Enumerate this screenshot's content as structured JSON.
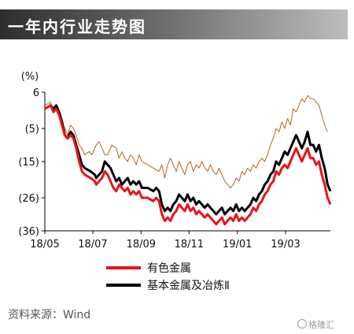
{
  "title": "一年内行业走势图",
  "source": "资料来源：Wind",
  "watermark": "格隆汇",
  "chart_data": {
    "type": "line",
    "ylabel": "(%)",
    "ylim": [
      -36,
      6
    ],
    "yticks": [
      6,
      -5,
      -15,
      -26,
      -36
    ],
    "ytick_labels": [
      "6",
      "(5)",
      "(15)",
      "(26)",
      "(36)"
    ],
    "xlim": [
      0,
      1
    ],
    "xtick_positions": [
      0,
      0.168,
      0.337,
      0.505,
      0.674,
      0.843
    ],
    "xtick_labels": [
      "18/05",
      "18/07",
      "18/09",
      "18/11",
      "19/01",
      "19/03"
    ],
    "grid": false,
    "legend_position": "bottom",
    "series": [
      {
        "name": "",
        "color": "#b5651d",
        "points": [
          [
            0,
            2
          ],
          [
            0.02,
            3
          ],
          [
            0.03,
            0
          ],
          [
            0.04,
            2
          ],
          [
            0.05,
            -1
          ],
          [
            0.06,
            -3
          ],
          [
            0.07,
            -5
          ],
          [
            0.08,
            -7
          ],
          [
            0.09,
            -4
          ],
          [
            0.1,
            -5
          ],
          [
            0.11,
            -7
          ],
          [
            0.12,
            -10
          ],
          [
            0.13,
            -11
          ],
          [
            0.14,
            -13
          ],
          [
            0.155,
            -12
          ],
          [
            0.165,
            -13
          ],
          [
            0.18,
            -10
          ],
          [
            0.19,
            -9
          ],
          [
            0.2,
            -11
          ],
          [
            0.21,
            -13
          ],
          [
            0.22,
            -13
          ],
          [
            0.235,
            -10
          ],
          [
            0.25,
            -11
          ],
          [
            0.26,
            -14
          ],
          [
            0.27,
            -12
          ],
          [
            0.28,
            -14
          ],
          [
            0.29,
            -15
          ],
          [
            0.3,
            -13
          ],
          [
            0.31,
            -14
          ],
          [
            0.32,
            -16
          ],
          [
            0.33,
            -13
          ],
          [
            0.34,
            -15
          ],
          [
            0.36,
            -16
          ],
          [
            0.38,
            -17
          ],
          [
            0.4,
            -18
          ],
          [
            0.41,
            -16
          ],
          [
            0.42,
            -20
          ],
          [
            0.43,
            -16
          ],
          [
            0.44,
            -14
          ],
          [
            0.45,
            -16
          ],
          [
            0.46,
            -18
          ],
          [
            0.47,
            -15
          ],
          [
            0.48,
            -17
          ],
          [
            0.49,
            -19
          ],
          [
            0.5,
            -16
          ],
          [
            0.51,
            -15
          ],
          [
            0.52,
            -18
          ],
          [
            0.53,
            -16
          ],
          [
            0.54,
            -17
          ],
          [
            0.55,
            -15
          ],
          [
            0.56,
            -17
          ],
          [
            0.57,
            -18
          ],
          [
            0.58,
            -16
          ],
          [
            0.59,
            -18
          ],
          [
            0.6,
            -19
          ],
          [
            0.61,
            -17
          ],
          [
            0.62,
            -19
          ],
          [
            0.63,
            -21
          ],
          [
            0.64,
            -22
          ],
          [
            0.65,
            -23
          ],
          [
            0.66,
            -22
          ],
          [
            0.67,
            -20
          ],
          [
            0.68,
            -21
          ],
          [
            0.69,
            -18
          ],
          [
            0.7,
            -19
          ],
          [
            0.71,
            -17
          ],
          [
            0.72,
            -18
          ],
          [
            0.73,
            -16
          ],
          [
            0.74,
            -17
          ],
          [
            0.75,
            -15
          ],
          [
            0.76,
            -14
          ],
          [
            0.77,
            -15
          ],
          [
            0.78,
            -13
          ],
          [
            0.79,
            -10
          ],
          [
            0.8,
            -8
          ],
          [
            0.81,
            -5
          ],
          [
            0.82,
            -6
          ],
          [
            0.83,
            -3
          ],
          [
            0.84,
            -5
          ],
          [
            0.85,
            -2
          ],
          [
            0.86,
            -4
          ],
          [
            0.87,
            1
          ],
          [
            0.88,
            0
          ],
          [
            0.89,
            2
          ],
          [
            0.9,
            4
          ],
          [
            0.91,
            3
          ],
          [
            0.92,
            5
          ],
          [
            0.93,
            4
          ],
          [
            0.94,
            4
          ],
          [
            0.95,
            3
          ],
          [
            0.96,
            2
          ],
          [
            0.97,
            -1
          ],
          [
            0.98,
            -4
          ],
          [
            0.99,
            -6
          ]
        ]
      },
      {
        "name": "基本金属及冶炼Ⅱ",
        "color": "#000000",
        "points": [
          [
            0,
            1
          ],
          [
            0.02,
            2
          ],
          [
            0.03,
            1
          ],
          [
            0.04,
            2
          ],
          [
            0.05,
            0
          ],
          [
            0.06,
            -3
          ],
          [
            0.07,
            -7
          ],
          [
            0.08,
            -8
          ],
          [
            0.09,
            -6
          ],
          [
            0.1,
            -7
          ],
          [
            0.11,
            -10
          ],
          [
            0.12,
            -13
          ],
          [
            0.13,
            -16
          ],
          [
            0.14,
            -17
          ],
          [
            0.16,
            -18
          ],
          [
            0.175,
            -19
          ],
          [
            0.18,
            -20
          ],
          [
            0.19,
            -19
          ],
          [
            0.2,
            -18
          ],
          [
            0.21,
            -15
          ],
          [
            0.22,
            -16
          ],
          [
            0.23,
            -17
          ],
          [
            0.24,
            -19
          ],
          [
            0.25,
            -21
          ],
          [
            0.26,
            -20
          ],
          [
            0.27,
            -22
          ],
          [
            0.28,
            -21
          ],
          [
            0.29,
            -20
          ],
          [
            0.3,
            -22
          ],
          [
            0.31,
            -21
          ],
          [
            0.32,
            -22
          ],
          [
            0.33,
            -21
          ],
          [
            0.34,
            -23
          ],
          [
            0.36,
            -23
          ],
          [
            0.38,
            -24
          ],
          [
            0.39,
            -23
          ],
          [
            0.4,
            -24
          ],
          [
            0.41,
            -28
          ],
          [
            0.42,
            -30
          ],
          [
            0.43,
            -29
          ],
          [
            0.44,
            -30
          ],
          [
            0.45,
            -28
          ],
          [
            0.46,
            -27
          ],
          [
            0.47,
            -25
          ],
          [
            0.48,
            -26
          ],
          [
            0.49,
            -27
          ],
          [
            0.5,
            -25
          ],
          [
            0.51,
            -27
          ],
          [
            0.52,
            -26
          ],
          [
            0.53,
            -28
          ],
          [
            0.54,
            -27
          ],
          [
            0.55,
            -28
          ],
          [
            0.56,
            -29
          ],
          [
            0.57,
            -28
          ],
          [
            0.58,
            -29
          ],
          [
            0.59,
            -30
          ],
          [
            0.6,
            -31
          ],
          [
            0.61,
            -30
          ],
          [
            0.62,
            -29
          ],
          [
            0.63,
            -31
          ],
          [
            0.64,
            -30
          ],
          [
            0.65,
            -29
          ],
          [
            0.66,
            -30
          ],
          [
            0.67,
            -28
          ],
          [
            0.68,
            -30
          ],
          [
            0.69,
            -29
          ],
          [
            0.7,
            -30
          ],
          [
            0.71,
            -29
          ],
          [
            0.72,
            -28
          ],
          [
            0.73,
            -26
          ],
          [
            0.74,
            -27
          ],
          [
            0.75,
            -25
          ],
          [
            0.76,
            -24
          ],
          [
            0.77,
            -22
          ],
          [
            0.78,
            -21
          ],
          [
            0.79,
            -19
          ],
          [
            0.8,
            -18
          ],
          [
            0.81,
            -15
          ],
          [
            0.82,
            -16
          ],
          [
            0.83,
            -14
          ],
          [
            0.84,
            -12
          ],
          [
            0.85,
            -13
          ],
          [
            0.86,
            -11
          ],
          [
            0.87,
            -9
          ],
          [
            0.88,
            -7
          ],
          [
            0.89,
            -9
          ],
          [
            0.9,
            -11
          ],
          [
            0.91,
            -9
          ],
          [
            0.92,
            -6
          ],
          [
            0.93,
            -10
          ],
          [
            0.94,
            -10
          ],
          [
            0.95,
            -12
          ],
          [
            0.96,
            -10
          ],
          [
            0.97,
            -14
          ],
          [
            0.98,
            -17
          ],
          [
            0.99,
            -22
          ],
          [
            1.0,
            -24
          ]
        ]
      },
      {
        "name": "有色金属",
        "color": "#e8141a",
        "points": [
          [
            0,
            1
          ],
          [
            0.02,
            2
          ],
          [
            0.03,
            0
          ],
          [
            0.04,
            1
          ],
          [
            0.05,
            -1
          ],
          [
            0.06,
            -4
          ],
          [
            0.07,
            -7
          ],
          [
            0.08,
            -8
          ],
          [
            0.09,
            -7
          ],
          [
            0.1,
            -8
          ],
          [
            0.11,
            -11
          ],
          [
            0.12,
            -15
          ],
          [
            0.13,
            -18
          ],
          [
            0.14,
            -19
          ],
          [
            0.16,
            -20
          ],
          [
            0.175,
            -21
          ],
          [
            0.18,
            -22
          ],
          [
            0.19,
            -21
          ],
          [
            0.2,
            -20
          ],
          [
            0.21,
            -18
          ],
          [
            0.22,
            -19
          ],
          [
            0.23,
            -21
          ],
          [
            0.24,
            -23
          ],
          [
            0.25,
            -24
          ],
          [
            0.26,
            -22
          ],
          [
            0.27,
            -23
          ],
          [
            0.28,
            -24
          ],
          [
            0.29,
            -23
          ],
          [
            0.3,
            -25
          ],
          [
            0.31,
            -24
          ],
          [
            0.32,
            -25
          ],
          [
            0.33,
            -24
          ],
          [
            0.34,
            -26
          ],
          [
            0.36,
            -26
          ],
          [
            0.38,
            -27
          ],
          [
            0.39,
            -26
          ],
          [
            0.4,
            -27
          ],
          [
            0.41,
            -31
          ],
          [
            0.42,
            -33
          ],
          [
            0.43,
            -32
          ],
          [
            0.44,
            -33
          ],
          [
            0.45,
            -31
          ],
          [
            0.46,
            -30
          ],
          [
            0.47,
            -28
          ],
          [
            0.48,
            -29
          ],
          [
            0.49,
            -30
          ],
          [
            0.5,
            -28
          ],
          [
            0.51,
            -30
          ],
          [
            0.52,
            -29
          ],
          [
            0.53,
            -31
          ],
          [
            0.54,
            -30
          ],
          [
            0.55,
            -31
          ],
          [
            0.56,
            -32
          ],
          [
            0.57,
            -31
          ],
          [
            0.58,
            -32
          ],
          [
            0.59,
            -33
          ],
          [
            0.6,
            -34
          ],
          [
            0.61,
            -33
          ],
          [
            0.62,
            -32
          ],
          [
            0.63,
            -34
          ],
          [
            0.64,
            -33
          ],
          [
            0.65,
            -32
          ],
          [
            0.66,
            -33
          ],
          [
            0.67,
            -31
          ],
          [
            0.68,
            -33
          ],
          [
            0.69,
            -32
          ],
          [
            0.7,
            -33
          ],
          [
            0.71,
            -32
          ],
          [
            0.72,
            -31
          ],
          [
            0.73,
            -29
          ],
          [
            0.74,
            -30
          ],
          [
            0.75,
            -28
          ],
          [
            0.76,
            -27
          ],
          [
            0.77,
            -25
          ],
          [
            0.78,
            -24
          ],
          [
            0.79,
            -22
          ],
          [
            0.8,
            -21
          ],
          [
            0.81,
            -18
          ],
          [
            0.82,
            -19
          ],
          [
            0.83,
            -17
          ],
          [
            0.84,
            -16
          ],
          [
            0.85,
            -17
          ],
          [
            0.86,
            -15
          ],
          [
            0.87,
            -13
          ],
          [
            0.88,
            -11
          ],
          [
            0.89,
            -13
          ],
          [
            0.9,
            -15
          ],
          [
            0.91,
            -13
          ],
          [
            0.92,
            -11
          ],
          [
            0.93,
            -14
          ],
          [
            0.94,
            -14
          ],
          [
            0.95,
            -16
          ],
          [
            0.96,
            -15
          ],
          [
            0.97,
            -19
          ],
          [
            0.98,
            -22
          ],
          [
            0.99,
            -26
          ],
          [
            1.0,
            -28
          ]
        ]
      }
    ]
  }
}
